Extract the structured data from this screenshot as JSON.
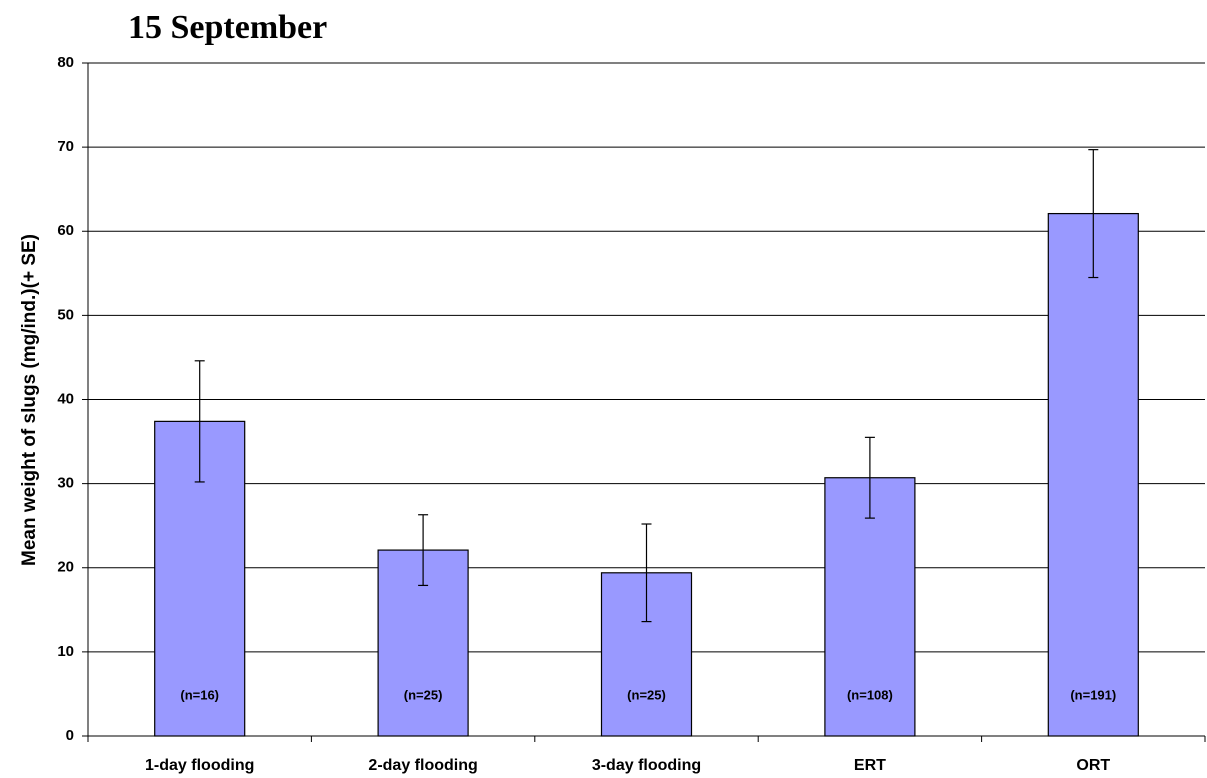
{
  "chart_data": {
    "type": "bar",
    "title": "15 September",
    "y_label": "Mean weight of slugs (mg/ind.)(+ SE)",
    "categories": [
      "1-day flooding",
      "2-day flooding",
      "3-day flooding",
      "ERT",
      "ORT"
    ],
    "values": [
      37.4,
      22.1,
      19.4,
      30.7,
      62.1
    ],
    "errors": [
      7.2,
      4.2,
      5.8,
      4.8,
      7.6
    ],
    "sample_labels": [
      "(n=16)",
      "(n=25)",
      "(n=25)",
      "(n=108)",
      "(n=191)"
    ],
    "color": "#9999ff",
    "ylim": [
      0,
      80
    ],
    "yticks": [
      0,
      10,
      20,
      30,
      40,
      50,
      60,
      70,
      80
    ],
    "grid": true
  }
}
